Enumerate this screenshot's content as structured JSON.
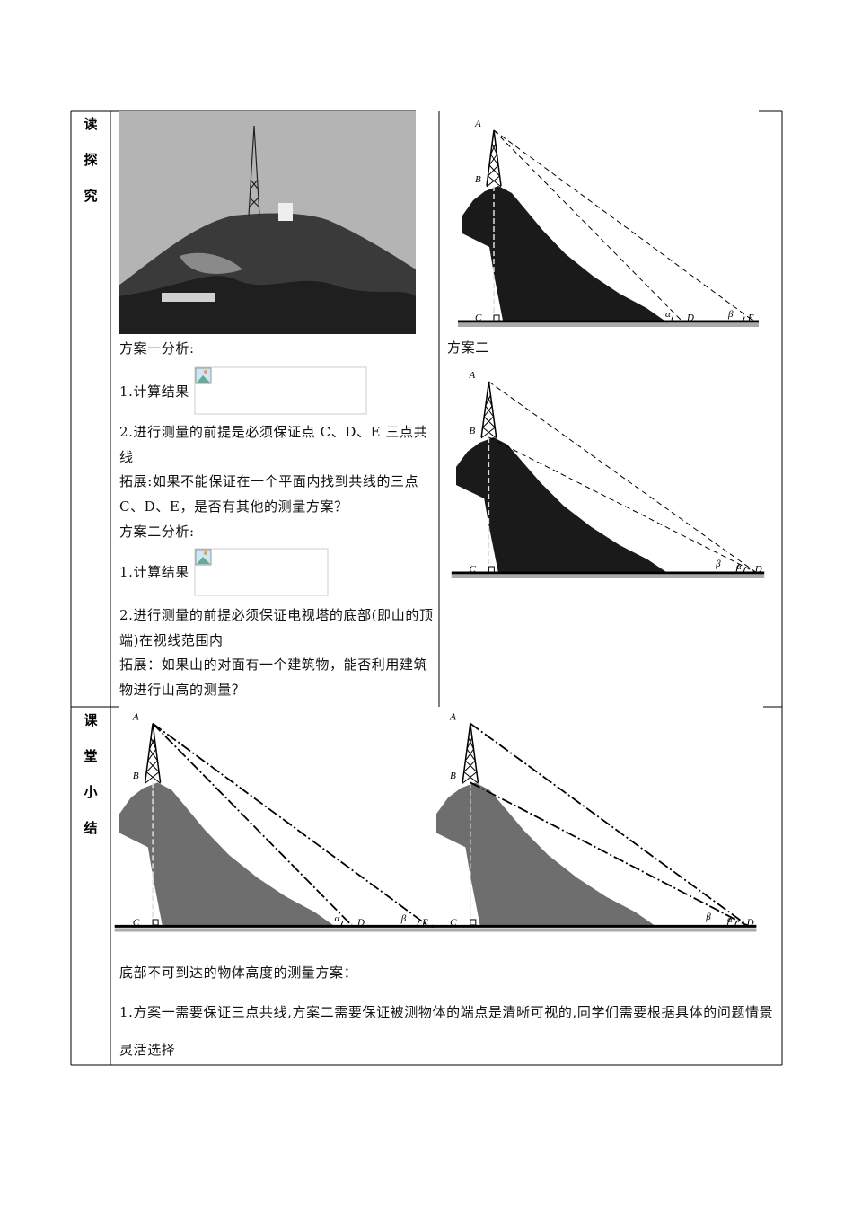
{
  "reading": {
    "label": "读探究",
    "plan1_title": "方案一分析:",
    "plan1_result": "1.计算结果",
    "plan1_premise": "2.进行测量的前提是必须保证点 C、D、E 三点共线",
    "plan1_extension": "拓展:如果不能保证在一个平面内找到共线的三点 C、D、E，是否有其他的测量方案？",
    "plan2_title": "方案二分析:",
    "plan2_result": "1.计算结果",
    "plan2_premise": "2.进行测量的前提必须保证电视塔的底部(即山的顶端)在视线范围内",
    "plan2_extension": "拓展：如果山的对面有一个建筑物，能否利用建筑物进行山高的测量？",
    "plan2_caption": "方案二",
    "figures": [
      {
        "labels": [
          "A",
          "B",
          "C",
          "α",
          "D",
          "β",
          "E"
        ]
      },
      {
        "labels": [
          "A",
          "B",
          "C",
          "β",
          "α",
          "D"
        ]
      }
    ]
  },
  "summary": {
    "label": "课堂小结",
    "figures": [
      {
        "labels": [
          "A",
          "B",
          "C",
          "α",
          "D",
          "β",
          "E"
        ]
      },
      {
        "labels": [
          "A",
          "B",
          "C",
          "β",
          "α",
          "D"
        ]
      }
    ],
    "heading": "底部不可到达的物体高度的测量方案：",
    "point": "1.方案一需要保证三点共线,方案二需要保证被测物体的端点是清晰可视的,同学们需要根据具体的问题情景灵活选择"
  }
}
